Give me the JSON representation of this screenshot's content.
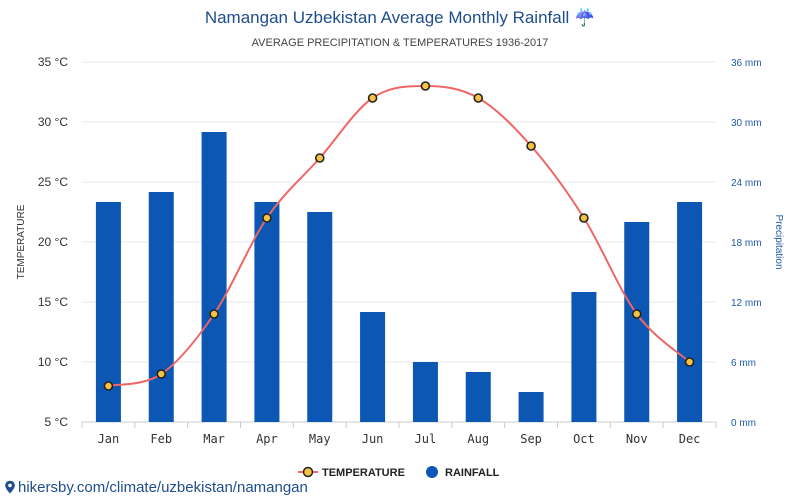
{
  "chart_data": {
    "type": "bar+line",
    "title": "Namangan Uzbekistan Average Monthly Rainfall",
    "title_icon": "☔",
    "subtitle": "AVERAGE PRECIPITATION & TEMPERATURES 1936-2017",
    "categories": [
      "Jan",
      "Feb",
      "Mar",
      "Apr",
      "May",
      "Jun",
      "Jul",
      "Aug",
      "Sep",
      "Oct",
      "Nov",
      "Dec"
    ],
    "temperature": {
      "name": "TEMPERATURE",
      "unit": "°C",
      "values": [
        8,
        9,
        14,
        22,
        27,
        32,
        33,
        32,
        28,
        22,
        14,
        10
      ],
      "axis_range": [
        5,
        35
      ],
      "ticks": [
        5,
        10,
        15,
        20,
        25,
        30,
        35
      ],
      "tick_labels": [
        "5 °C",
        "10 °C",
        "15 °C",
        "20 °C",
        "25 °C",
        "30 °C",
        "35 °C"
      ],
      "axis_label": "TEMPERATURE",
      "color": "#ee6666",
      "marker_fill": "#f5c242",
      "marker_stroke": "#222222"
    },
    "rainfall": {
      "name": "RAINFALL",
      "unit": "mm",
      "values": [
        22,
        23,
        29,
        22,
        21,
        11,
        6,
        5,
        3,
        13,
        20,
        22
      ],
      "axis_range": [
        0,
        36
      ],
      "ticks": [
        0,
        6,
        12,
        18,
        24,
        30,
        36
      ],
      "tick_labels": [
        "0 mm",
        "6 mm",
        "12 mm",
        "18 mm",
        "24 mm",
        "30 mm",
        "36 mm"
      ],
      "axis_label": "Precipitation",
      "color": "#0b57b3"
    },
    "legend": [
      "TEMPERATURE",
      "RAINFALL"
    ],
    "legend_position": "bottom-center",
    "grid": true
  },
  "footer": {
    "url": "hikersby.com/climate/uzbekistan/namangan"
  }
}
